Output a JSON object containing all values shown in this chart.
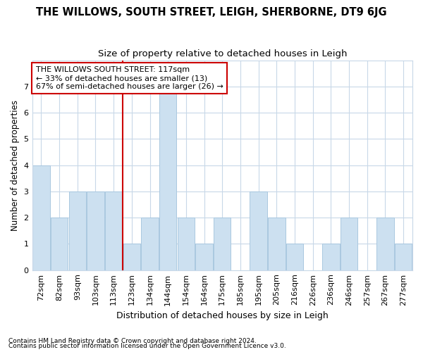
{
  "title": "THE WILLOWS, SOUTH STREET, LEIGH, SHERBORNE, DT9 6JG",
  "subtitle": "Size of property relative to detached houses in Leigh",
  "xlabel": "Distribution of detached houses by size in Leigh",
  "ylabel": "Number of detached properties",
  "categories": [
    "72sqm",
    "82sqm",
    "93sqm",
    "103sqm",
    "113sqm",
    "123sqm",
    "134sqm",
    "144sqm",
    "154sqm",
    "164sqm",
    "175sqm",
    "185sqm",
    "195sqm",
    "205sqm",
    "216sqm",
    "226sqm",
    "236sqm",
    "246sqm",
    "257sqm",
    "267sqm",
    "277sqm"
  ],
  "values": [
    4,
    2,
    3,
    3,
    3,
    1,
    2,
    7,
    2,
    1,
    2,
    0,
    3,
    2,
    1,
    0,
    1,
    2,
    0,
    2,
    1
  ],
  "bar_color": "#cce0f0",
  "bar_edge_color": "#aac8e0",
  "vline_x_index": 4,
  "vline_color": "#cc0000",
  "annotation_text": "THE WILLOWS SOUTH STREET: 117sqm\n← 33% of detached houses are smaller (13)\n67% of semi-detached houses are larger (26) →",
  "annotation_box_color": "#ffffff",
  "annotation_box_edge": "#cc0000",
  "ylim": [
    0,
    8
  ],
  "yticks": [
    0,
    1,
    2,
    3,
    4,
    5,
    6,
    7,
    8
  ],
  "footnote1": "Contains HM Land Registry data © Crown copyright and database right 2024.",
  "footnote2": "Contains public sector information licensed under the Open Government Licence v3.0.",
  "background_color": "#ffffff",
  "plot_bg_color": "#ffffff",
  "grid_color": "#c8d8e8",
  "title_fontsize": 10.5,
  "subtitle_fontsize": 9.5,
  "xlabel_fontsize": 9,
  "ylabel_fontsize": 8.5,
  "tick_fontsize": 8,
  "footnote_fontsize": 6.5,
  "annotation_fontsize": 8
}
